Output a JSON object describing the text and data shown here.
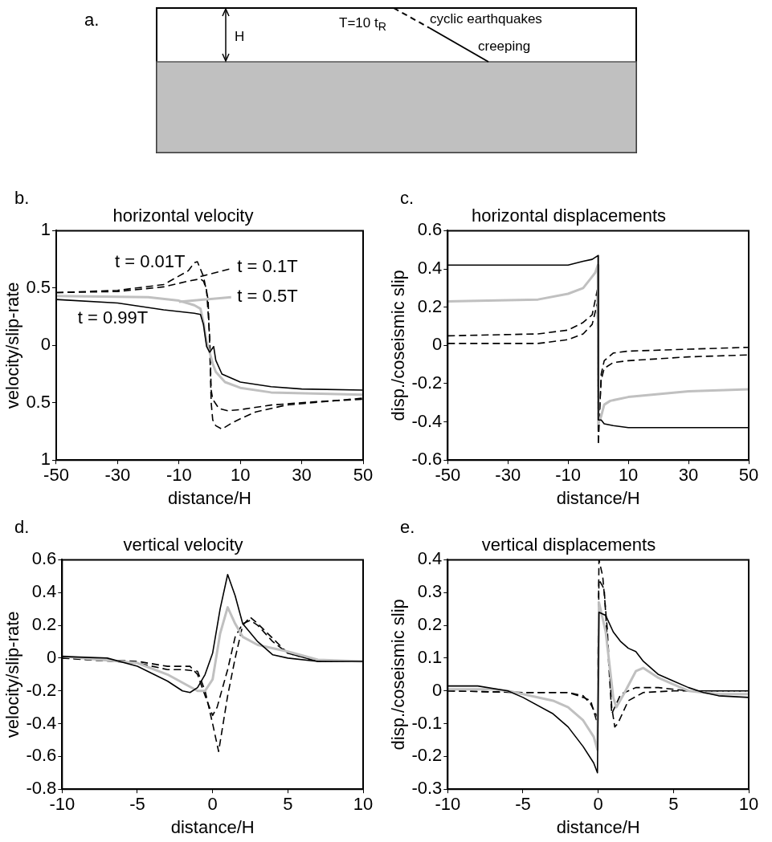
{
  "chart_data": [
    {
      "type": "other",
      "annotations": [
        "a.",
        "H",
        "T=10 t$_{R}$",
        "cyclic earthquakes",
        "creeping"
      ]
    },
    {
      "type": "line",
      "title": "horizontal velocity",
      "xlabel": "distance/H",
      "ylabel": "velocity/slip-rate",
      "annotations": [
        "b."
      ],
      "legend": "top",
      "xlim": [
        -50,
        50
      ],
      "xticks": [
        -50,
        -30,
        -10,
        10,
        30,
        50
      ],
      "ylim": [
        -1,
        1
      ],
      "yticks": [
        {
          "value": -1,
          "label": "1"
        },
        {
          "value": -0.5,
          "label": "0.5"
        },
        0,
        0.5,
        1
      ],
      "series": [
        {
          "name": "t = 0.01T",
          "color": "#000000",
          "line_style": "dashed",
          "x": [
            -50,
            -30,
            -15,
            -7,
            -5,
            -4,
            -2,
            -0.5,
            0,
            0.5,
            1,
            2,
            4,
            7,
            10,
            15,
            25,
            50
          ],
          "values": [
            0.46,
            0.48,
            0.53,
            0.65,
            0.72,
            0.73,
            0.6,
            0.4,
            0.0,
            -0.5,
            -0.65,
            -0.7,
            -0.73,
            -0.68,
            -0.64,
            -0.58,
            -0.52,
            -0.46
          ]
        },
        {
          "name": "t = 0.1T",
          "color": "#000000",
          "line_style": "dashed",
          "x": [
            -50,
            -30,
            -15,
            -7,
            -3,
            -2,
            -1,
            0,
            0.5,
            1,
            3,
            6,
            10,
            20,
            35,
            50
          ],
          "values": [
            0.46,
            0.47,
            0.51,
            0.56,
            0.58,
            0.56,
            0.48,
            0.08,
            -0.39,
            -0.47,
            -0.55,
            -0.57,
            -0.56,
            -0.52,
            -0.49,
            -0.47
          ]
        },
        {
          "name": "t = 0.5T",
          "color": "#c0c0c0",
          "line_style": "solid",
          "x": [
            -50,
            -20,
            -10,
            -5,
            -3,
            -2,
            -1,
            0,
            1,
            2,
            5,
            10,
            20,
            50
          ],
          "values": [
            0.43,
            0.42,
            0.39,
            0.35,
            0.32,
            0.2,
            0.03,
            -0.06,
            -0.16,
            -0.23,
            -0.32,
            -0.37,
            -0.41,
            -0.43
          ]
        },
        {
          "name": "t = 0.99T",
          "color": "#000000",
          "line_style": "solid",
          "x": [
            -50,
            -30,
            -15,
            -5,
            -3,
            -2,
            -1,
            0,
            1.3,
            2,
            4,
            10,
            20,
            30,
            50
          ],
          "values": [
            0.4,
            0.37,
            0.31,
            0.28,
            0.27,
            0.18,
            -0.01,
            -0.06,
            -0.01,
            -0.13,
            -0.25,
            -0.32,
            -0.36,
            -0.38,
            -0.39
          ]
        }
      ]
    },
    {
      "type": "line",
      "title": "horizontal displacements",
      "xlabel": "distance/H",
      "ylabel": "disp./coseismic slip",
      "annotations": [
        "c."
      ],
      "xlim": [
        -50,
        50
      ],
      "xticks": [
        -50,
        -30,
        -10,
        10,
        30,
        50
      ],
      "ylim": [
        -0.6,
        0.6
      ],
      "yticks": [
        -0.6,
        -0.4,
        -0.2,
        0,
        0.2,
        0.4,
        0.6
      ],
      "series": [
        {
          "color": "#000000",
          "line_style": "dashed",
          "x": [
            -50,
            -20,
            -10,
            -5,
            -2,
            -0.3,
            0.05,
            1,
            2,
            5,
            10,
            30,
            50
          ],
          "values": [
            0.01,
            0.01,
            0.03,
            0.06,
            0.11,
            0.22,
            -0.52,
            -0.15,
            -0.08,
            -0.04,
            -0.03,
            -0.02,
            -0.01
          ]
        },
        {
          "color": "#000000",
          "line_style": "dashed",
          "x": [
            -50,
            -20,
            -10,
            -5,
            -2,
            -0.3,
            0.05,
            1,
            2,
            5,
            10,
            30,
            50
          ],
          "values": [
            0.05,
            0.06,
            0.08,
            0.12,
            0.16,
            0.29,
            -0.45,
            -0.18,
            -0.12,
            -0.09,
            -0.08,
            -0.06,
            -0.05
          ]
        },
        {
          "color": "#c0c0c0",
          "line_style": "solid",
          "x": [
            -50,
            -20,
            -10,
            -5,
            -2,
            -1,
            -0.1,
            0.05,
            1,
            2,
            4,
            10,
            30,
            50
          ],
          "values": [
            0.23,
            0.24,
            0.27,
            0.3,
            0.36,
            0.38,
            0.42,
            -0.41,
            -0.37,
            -0.31,
            -0.29,
            -0.27,
            -0.24,
            -0.23
          ]
        },
        {
          "color": "#000000",
          "line_style": "solid",
          "x": [
            -50,
            -10,
            -5,
            -2,
            -0.05,
            0.05,
            1,
            2,
            5,
            10,
            50
          ],
          "values": [
            0.42,
            0.42,
            0.44,
            0.45,
            0.47,
            -0.39,
            -0.39,
            -0.41,
            -0.42,
            -0.43,
            -0.43
          ]
        }
      ]
    },
    {
      "type": "line",
      "title": "vertical velocity",
      "xlabel": "distance/H",
      "ylabel": "velocity/slip-rate",
      "annotations": [
        "d."
      ],
      "xlim": [
        -10,
        10
      ],
      "xticks": [
        -10,
        -5,
        0,
        5,
        10
      ],
      "ylim": [
        -0.8,
        0.6
      ],
      "yticks": [
        -0.8,
        -0.6,
        -0.4,
        -0.2,
        0,
        0.2,
        0.4,
        0.6
      ],
      "series": [
        {
          "color": "#000000",
          "line_style": "dashed",
          "x": [
            -10,
            -5,
            -3,
            -2,
            -1,
            -0.5,
            0,
            0.4,
            0.7,
            1,
            1.5,
            2,
            2.5,
            3,
            4,
            5,
            7,
            10
          ],
          "values": [
            0.0,
            -0.03,
            -0.07,
            -0.07,
            -0.08,
            -0.2,
            -0.4,
            -0.57,
            -0.4,
            -0.23,
            0.0,
            0.2,
            0.25,
            0.21,
            0.12,
            0.03,
            -0.02,
            -0.02
          ]
        },
        {
          "color": "#000000",
          "line_style": "dashed",
          "x": [
            -10,
            -5,
            -3,
            -1.5,
            -1,
            -0.5,
            0,
            0.3,
            1,
            1.5,
            2,
            2.5,
            3,
            4,
            5,
            7,
            10
          ],
          "values": [
            0.0,
            -0.02,
            -0.05,
            -0.05,
            -0.1,
            -0.23,
            -0.35,
            -0.3,
            -0.07,
            0.13,
            0.21,
            0.23,
            0.2,
            0.1,
            0.03,
            -0.02,
            -0.02
          ]
        },
        {
          "color": "#c0c0c0",
          "line_style": "solid",
          "x": [
            -10,
            -5,
            -3,
            -2,
            -1,
            -0.5,
            0,
            0.5,
            1,
            1.5,
            2,
            3,
            5,
            7,
            10
          ],
          "values": [
            0.01,
            -0.03,
            -0.1,
            -0.15,
            -0.2,
            -0.2,
            -0.13,
            0.15,
            0.31,
            0.21,
            0.13,
            0.08,
            0.04,
            -0.01,
            -0.02
          ]
        },
        {
          "color": "#000000",
          "line_style": "solid",
          "x": [
            -10,
            -7,
            -5,
            -3,
            -2,
            -1.5,
            -1,
            -0.5,
            0,
            0.5,
            1,
            1.5,
            2,
            3,
            4,
            5,
            7,
            10
          ],
          "values": [
            0.01,
            0.0,
            -0.05,
            -0.14,
            -0.2,
            -0.21,
            -0.18,
            -0.1,
            0.03,
            0.3,
            0.51,
            0.38,
            0.21,
            0.1,
            0.02,
            0.0,
            -0.02,
            -0.02
          ]
        }
      ]
    },
    {
      "type": "line",
      "title": "vertical displacements",
      "xlabel": "distance/H",
      "ylabel": "disp./coseismic slip",
      "annotations": [
        "e."
      ],
      "xlim": [
        -10,
        10
      ],
      "xticks": [
        -10,
        -5,
        0,
        5,
        10
      ],
      "ylim": [
        -0.3,
        0.4
      ],
      "yticks": [
        -0.3,
        -0.2,
        -0.1,
        0,
        0.1,
        0.2,
        0.3,
        0.4
      ],
      "series": [
        {
          "color": "#000000",
          "line_style": "dashed",
          "x": [
            -10,
            -5,
            -2,
            -1,
            -0.5,
            -0.05,
            0.05,
            0.3,
            0.6,
            0.9,
            1.1,
            1.3,
            2,
            3,
            5,
            10
          ],
          "values": [
            0.0,
            -0.005,
            -0.005,
            -0.015,
            -0.04,
            -0.08,
            0.4,
            0.35,
            0.19,
            -0.05,
            -0.11,
            -0.1,
            -0.03,
            -0.005,
            0.0,
            0.0
          ]
        },
        {
          "color": "#000000",
          "line_style": "dashed",
          "x": [
            -10,
            -5,
            -2,
            -1,
            -0.5,
            -0.05,
            0.05,
            0.4,
            0.9,
            1.2,
            1.5,
            2,
            2.5,
            4,
            6,
            10
          ],
          "values": [
            0.0,
            -0.005,
            -0.005,
            -0.02,
            -0.03,
            -0.1,
            0.34,
            0.31,
            -0.07,
            -0.04,
            -0.01,
            0.0,
            0.01,
            0.01,
            0.0,
            0.0
          ]
        },
        {
          "color": "#c0c0c0",
          "line_style": "solid",
          "x": [
            -10,
            -7,
            -6,
            -5,
            -3,
            -2,
            -1,
            -0.3,
            -0.05,
            0.05,
            0.5,
            1,
            1.2,
            1.7,
            2.5,
            3,
            4,
            5,
            6,
            8,
            10
          ],
          "values": [
            0.005,
            0.005,
            0.0,
            -0.01,
            -0.03,
            -0.05,
            -0.09,
            -0.14,
            -0.18,
            0.27,
            0.18,
            -0.02,
            -0.05,
            -0.01,
            0.06,
            0.07,
            0.04,
            0.02,
            0.0,
            -0.01,
            -0.01
          ]
        },
        {
          "color": "#000000",
          "line_style": "solid",
          "x": [
            -10,
            -8,
            -6,
            -5,
            -3,
            -2,
            -1,
            -0.3,
            -0.05,
            0.05,
            0.5,
            1,
            1.5,
            2,
            2.5,
            3,
            4,
            5,
            6,
            7,
            8,
            10
          ],
          "values": [
            0.015,
            0.015,
            0.0,
            -0.02,
            -0.07,
            -0.11,
            -0.17,
            -0.22,
            -0.25,
            0.24,
            0.23,
            0.18,
            0.15,
            0.13,
            0.12,
            0.09,
            0.05,
            0.03,
            0.01,
            -0.005,
            -0.015,
            -0.02
          ]
        }
      ]
    }
  ]
}
